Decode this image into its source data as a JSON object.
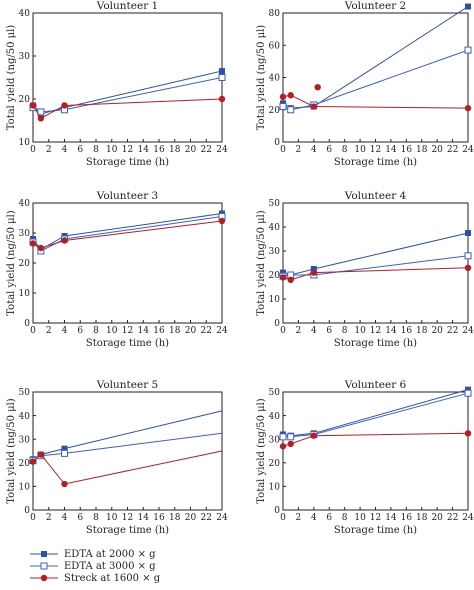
{
  "colors": {
    "edta2000": "#3050a8",
    "edta3000": "#3f5fbf",
    "streck": "#b02025",
    "axis": "#222222"
  },
  "legend": [
    {
      "label": "EDTA at 2000 × g",
      "marker": "filled-square",
      "color": "#3050a8"
    },
    {
      "label": "EDTA at 3000 × g",
      "marker": "open-square",
      "color": "#3f5fbf"
    },
    {
      "label": "Streck at 1600 × g",
      "marker": "filled-circle",
      "color": "#b02025"
    }
  ],
  "chart_data": [
    {
      "type": "line",
      "title": "Volunteer 1",
      "xlabel": "Storage time (h)",
      "ylabel": "Total yield (ng/50 μl)",
      "xlim": [
        0,
        24
      ],
      "ylim": [
        10,
        40
      ],
      "xticks": [
        0,
        2,
        4,
        6,
        8,
        10,
        12,
        14,
        16,
        18,
        20,
        22,
        24
      ],
      "yticks": [
        10,
        20,
        30,
        40
      ],
      "x": [
        0,
        1,
        4,
        24
      ],
      "series": [
        {
          "name": "EDTA at 2000 × g",
          "values": [
            18.5,
            16.5,
            18.0,
            26.5
          ]
        },
        {
          "name": "EDTA at 3000 × g",
          "values": [
            18.0,
            17.0,
            17.5,
            25.0
          ]
        },
        {
          "name": "Streck at 1600 × g",
          "values": [
            18.5,
            15.5,
            18.5,
            20.0
          ]
        }
      ]
    },
    {
      "type": "line",
      "title": "Volunteer 2",
      "xlabel": "Storage time (h)",
      "ylabel": "Total yield (ng/50 μl)",
      "xlim": [
        0,
        24
      ],
      "ylim": [
        0,
        80
      ],
      "xticks": [
        0,
        2,
        4,
        6,
        8,
        10,
        12,
        14,
        16,
        18,
        20,
        22,
        24
      ],
      "yticks": [
        0,
        20,
        40,
        60,
        80
      ],
      "x": [
        0,
        1,
        4,
        24
      ],
      "series": [
        {
          "name": "EDTA at 2000 × g",
          "values": [
            24,
            21,
            22,
            84
          ]
        },
        {
          "name": "EDTA at 3000 × g",
          "values": [
            22,
            20,
            23,
            57
          ]
        },
        {
          "name": "Streck at 1600 × g",
          "values": [
            28,
            29,
            22,
            21
          ]
        }
      ],
      "extra_points": [
        {
          "series": "Streck at 1600 × g",
          "x": 4.5,
          "y": 34
        }
      ]
    },
    {
      "type": "line",
      "title": "Volunteer 3",
      "xlabel": "Storage time (h)",
      "ylabel": "Total yield (ng/50 μl)",
      "xlim": [
        0,
        24
      ],
      "ylim": [
        0,
        40
      ],
      "xticks": [
        0,
        2,
        4,
        6,
        8,
        10,
        12,
        14,
        16,
        18,
        20,
        22,
        24
      ],
      "yticks": [
        0,
        10,
        20,
        30,
        40
      ],
      "x": [
        0,
        1,
        4,
        24
      ],
      "series": [
        {
          "name": "EDTA at 2000 × g",
          "values": [
            28,
            24.5,
            29,
            36.5
          ]
        },
        {
          "name": "EDTA at 3000 × g",
          "values": [
            27,
            24,
            28,
            35.5
          ]
        },
        {
          "name": "Streck at 1600 × g",
          "values": [
            26.5,
            25,
            27.5,
            34
          ]
        }
      ]
    },
    {
      "type": "line",
      "title": "Volunteer 4",
      "xlabel": "Storage time (h)",
      "ylabel": "Total yield (ng/50 μl)",
      "xlim": [
        0,
        24
      ],
      "ylim": [
        0,
        50
      ],
      "xticks": [
        0,
        2,
        4,
        6,
        8,
        10,
        12,
        14,
        16,
        18,
        20,
        22,
        24
      ],
      "yticks": [
        0,
        10,
        20,
        30,
        40,
        50
      ],
      "x": [
        0,
        1,
        4,
        24
      ],
      "series": [
        {
          "name": "EDTA at 2000 × g",
          "values": [
            21,
            20,
            22.5,
            37.5
          ]
        },
        {
          "name": "EDTA at 3000 × g",
          "values": [
            19.5,
            20,
            20,
            28
          ]
        },
        {
          "name": "Streck at 1600 × g",
          "values": [
            19,
            18,
            21,
            23
          ]
        }
      ]
    },
    {
      "type": "line",
      "title": "Volunteer 5",
      "xlabel": "Storage time (h)",
      "ylabel": "Total yield (ng/50 μl)",
      "xlim": [
        0,
        24
      ],
      "ylim": [
        0,
        50
      ],
      "xticks": [
        0,
        2,
        4,
        6,
        8,
        10,
        12,
        14,
        16,
        18,
        20,
        22,
        24
      ],
      "yticks": [
        0,
        10,
        20,
        30,
        40,
        50
      ],
      "x": [
        0,
        1,
        4,
        24
      ],
      "series": [
        {
          "name": "EDTA at 2000 × g",
          "values": [
            21.5,
            23.5,
            26,
            42
          ]
        },
        {
          "name": "EDTA at 3000 × g",
          "values": [
            21,
            23,
            24,
            32.5
          ]
        },
        {
          "name": "Streck at 1600 × g",
          "values": [
            20.5,
            23.5,
            11,
            25
          ]
        }
      ],
      "markers_at_24": false
    },
    {
      "type": "line",
      "title": "Volunteer 6",
      "xlabel": "Storage time (h)",
      "ylabel": "Total yield (ng/50 μl)",
      "xlim": [
        0,
        24
      ],
      "ylim": [
        0,
        50
      ],
      "xticks": [
        0,
        2,
        4,
        6,
        8,
        10,
        12,
        14,
        16,
        18,
        20,
        22,
        24
      ],
      "yticks": [
        0,
        10,
        20,
        30,
        40,
        50
      ],
      "x": [
        0,
        1,
        4,
        24
      ],
      "series": [
        {
          "name": "EDTA at 2000 × g",
          "values": [
            32,
            31.5,
            32.5,
            51
          ]
        },
        {
          "name": "EDTA at 3000 × g",
          "values": [
            31,
            31,
            32,
            49.5
          ]
        },
        {
          "name": "Streck at 1600 × g",
          "values": [
            27,
            28,
            31.5,
            32.5
          ]
        }
      ]
    }
  ]
}
